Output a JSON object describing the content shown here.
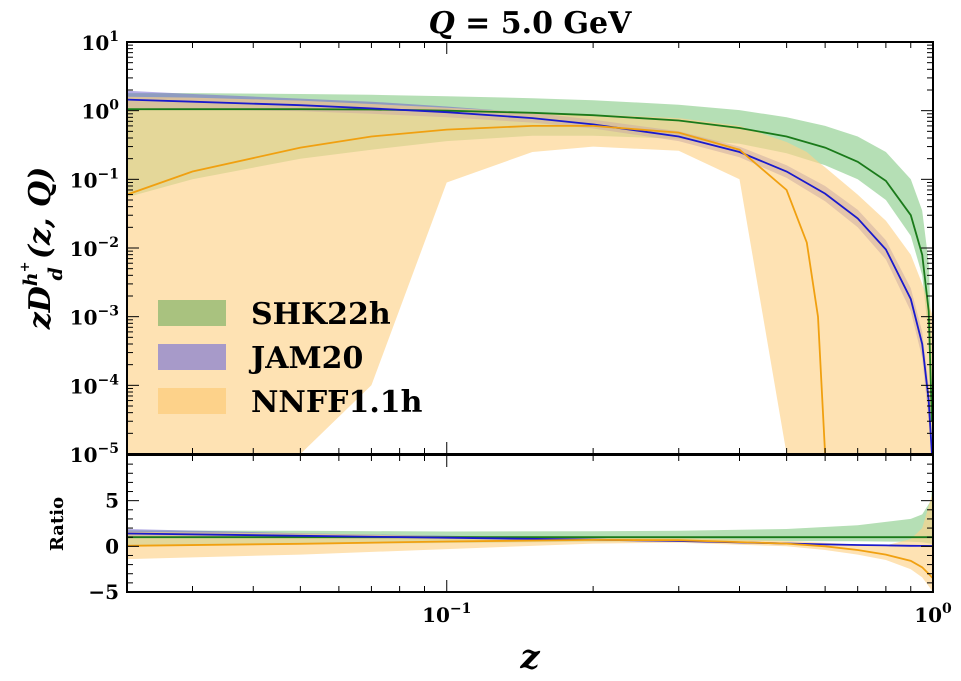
{
  "chart_data": [
    {
      "type": "line",
      "panel": "main",
      "title": "Q = 5.0 GeV",
      "title_parts": {
        "lhs": "Q",
        "eq": " = ",
        "rhs": "5.0 GeV"
      },
      "ylabel_parts": {
        "zD": "zD",
        "sup": "h",
        "supplus": "+",
        "sub": "d",
        "args": "(z, Q)"
      },
      "xscale": "log",
      "yscale": "log",
      "xlim": [
        0.022,
        1.0
      ],
      "ylim": [
        1e-05,
        10
      ],
      "y_ticks": [
        {
          "value": 10,
          "base": "10",
          "exp": "1"
        },
        {
          "value": 1,
          "base": "10",
          "exp": "0"
        },
        {
          "value": 0.1,
          "base": "10",
          "exp": "−1"
        },
        {
          "value": 0.01,
          "base": "10",
          "exp": "−2"
        },
        {
          "value": 0.001,
          "base": "10",
          "exp": "−3"
        },
        {
          "value": 0.0001,
          "base": "10",
          "exp": "−4"
        },
        {
          "value": 1e-05,
          "base": "10",
          "exp": "−5"
        }
      ],
      "legend_position": "lower-left",
      "legend": [
        {
          "label": "SHK22h",
          "swatch": "#a9c27f"
        },
        {
          "label": "JAM20",
          "swatch": "#a79ac9"
        },
        {
          "label": "NNFF1.1h",
          "swatch": "#fdd28a"
        }
      ],
      "series": [
        {
          "name": "SHK22h",
          "line_color": "#1a7a1a",
          "band_color": "#5cb85c",
          "band_opacity": 0.45,
          "z": [
            0.022,
            0.03,
            0.05,
            0.07,
            0.1,
            0.15,
            0.2,
            0.3,
            0.4,
            0.5,
            0.6,
            0.7,
            0.8,
            0.9,
            0.95,
            0.98,
            0.995
          ],
          "central": [
            1.05,
            1.05,
            1.05,
            1.04,
            1.0,
            0.93,
            0.86,
            0.72,
            0.56,
            0.42,
            0.29,
            0.18,
            0.095,
            0.03,
            0.008,
            0.0012,
            3e-05
          ],
          "lower": [
            0.055,
            0.1,
            0.2,
            0.27,
            0.36,
            0.43,
            0.43,
            0.39,
            0.33,
            0.24,
            0.16,
            0.1,
            0.05,
            0.015,
            0.004,
            0.0005,
            1e-05
          ],
          "upper": [
            1.8,
            1.8,
            1.75,
            1.7,
            1.62,
            1.52,
            1.42,
            1.22,
            1.02,
            0.8,
            0.6,
            0.42,
            0.25,
            0.1,
            0.035,
            0.006,
            0.0003
          ]
        },
        {
          "name": "JAM20",
          "line_color": "#1a1acc",
          "band_color": "#6a5acd",
          "band_opacity": 0.5,
          "z": [
            0.022,
            0.03,
            0.05,
            0.07,
            0.1,
            0.15,
            0.2,
            0.3,
            0.4,
            0.5,
            0.6,
            0.7,
            0.8,
            0.9,
            0.95,
            0.98,
            0.995
          ],
          "central": [
            1.45,
            1.35,
            1.2,
            1.08,
            0.95,
            0.78,
            0.63,
            0.42,
            0.25,
            0.13,
            0.062,
            0.027,
            0.0095,
            0.0018,
            0.0004,
            6e-05,
            1e-05
          ],
          "lower": [
            1.1,
            1.05,
            0.98,
            0.9,
            0.8,
            0.67,
            0.55,
            0.36,
            0.21,
            0.105,
            0.048,
            0.02,
            0.0068,
            0.0012,
            0.00025,
            3e-05,
            1e-05
          ],
          "upper": [
            1.95,
            1.75,
            1.5,
            1.35,
            1.15,
            0.93,
            0.74,
            0.5,
            0.3,
            0.16,
            0.08,
            0.036,
            0.013,
            0.0026,
            0.0006,
            0.0001,
            2e-05
          ]
        },
        {
          "name": "NNFF1.1h",
          "line_color": "#f0a010",
          "band_color": "#fdd28a",
          "band_opacity": 0.65,
          "z": [
            0.022,
            0.03,
            0.05,
            0.07,
            0.1,
            0.15,
            0.2,
            0.3,
            0.4,
            0.5,
            0.55,
            0.58,
            0.6,
            0.7,
            0.8,
            0.9,
            0.95,
            1.0
          ],
          "central": [
            0.06,
            0.13,
            0.29,
            0.42,
            0.53,
            0.6,
            0.6,
            0.48,
            0.27,
            0.07,
            0.012,
            0.001,
            1e-05,
            null,
            null,
            null,
            null,
            null
          ],
          "lower": [
            1e-05,
            1e-05,
            1e-05,
            0.0001,
            0.09,
            0.25,
            0.3,
            0.26,
            0.1,
            1e-05,
            1e-05,
            1e-05,
            1e-05,
            1e-05,
            1e-05,
            1e-05,
            1e-05,
            1e-05
          ],
          "upper": [
            1.6,
            1.55,
            1.4,
            1.25,
            1.1,
            0.95,
            0.88,
            0.78,
            0.6,
            0.35,
            0.25,
            0.18,
            0.15,
            0.06,
            0.025,
            0.008,
            0.003,
            0.001
          ]
        }
      ]
    },
    {
      "type": "line",
      "panel": "ratio",
      "ylabel": "Ratio",
      "xlabel": "z",
      "xscale": "log",
      "xlim": [
        0.022,
        1.0
      ],
      "ylim": [
        -5,
        10
      ],
      "y_ticks": [
        {
          "value": 5,
          "label": "5"
        },
        {
          "value": 0,
          "label": "0"
        },
        {
          "value": -5,
          "label": "−5"
        }
      ],
      "x_ticks": [
        {
          "value": 0.1,
          "base": "10",
          "exp": "−1"
        },
        {
          "value": 1,
          "base": "10",
          "exp": "0"
        }
      ],
      "series": [
        {
          "name": "SHK22h",
          "line_color": "#1a7a1a",
          "band_color": "#5cb85c",
          "band_opacity": 0.45,
          "z": [
            0.022,
            0.05,
            0.1,
            0.2,
            0.3,
            0.5,
            0.7,
            0.9,
            0.95,
            0.99,
            1.0
          ],
          "central": [
            1.0,
            1.0,
            1.0,
            1.0,
            1.0,
            1.0,
            1.0,
            1.0,
            1.0,
            1.0,
            1.0
          ],
          "lower": [
            0.05,
            0.2,
            0.36,
            0.5,
            0.55,
            0.57,
            0.55,
            0.5,
            0.45,
            0.3,
            0.2
          ],
          "upper": [
            1.75,
            1.7,
            1.62,
            1.65,
            1.7,
            1.9,
            2.3,
            3.0,
            3.5,
            5.0,
            8.0
          ]
        },
        {
          "name": "JAM20",
          "line_color": "#1a1acc",
          "band_color": "#6a5acd",
          "band_opacity": 0.5,
          "z": [
            0.022,
            0.05,
            0.1,
            0.2,
            0.3,
            0.5,
            0.6,
            0.7,
            0.8,
            0.9,
            0.95,
            1.0
          ],
          "central": [
            1.4,
            1.15,
            0.95,
            0.73,
            0.58,
            0.31,
            0.21,
            0.15,
            0.1,
            0.06,
            0.05,
            0.04
          ],
          "lower": [
            1.05,
            0.94,
            0.8,
            0.64,
            0.5,
            0.25,
            0.17,
            0.11,
            0.07,
            0.04,
            0.03,
            0.02
          ],
          "upper": [
            1.9,
            1.43,
            1.15,
            0.86,
            0.69,
            0.38,
            0.27,
            0.2,
            0.14,
            0.09,
            0.08,
            0.07
          ]
        },
        {
          "name": "NNFF1.1h",
          "line_color": "#f0a010",
          "band_color": "#fdd28a",
          "band_opacity": 0.65,
          "z": [
            0.022,
            0.05,
            0.1,
            0.2,
            0.3,
            0.5,
            0.6,
            0.7,
            0.8,
            0.9,
            0.95,
            1.0
          ],
          "central": [
            0.06,
            0.28,
            0.53,
            0.7,
            0.67,
            0.3,
            0.0,
            -0.4,
            -0.9,
            -1.6,
            -2.3,
            -3.5
          ],
          "lower": [
            -1.4,
            -0.9,
            -0.3,
            0.3,
            0.4,
            0.0,
            -0.4,
            -0.9,
            -1.5,
            -2.5,
            -3.4,
            -5.0
          ],
          "upper": [
            1.6,
            1.4,
            1.1,
            0.95,
            0.9,
            0.6,
            0.4,
            0.2,
            0.1,
            0.8,
            2.0,
            6.0
          ]
        }
      ]
    }
  ]
}
